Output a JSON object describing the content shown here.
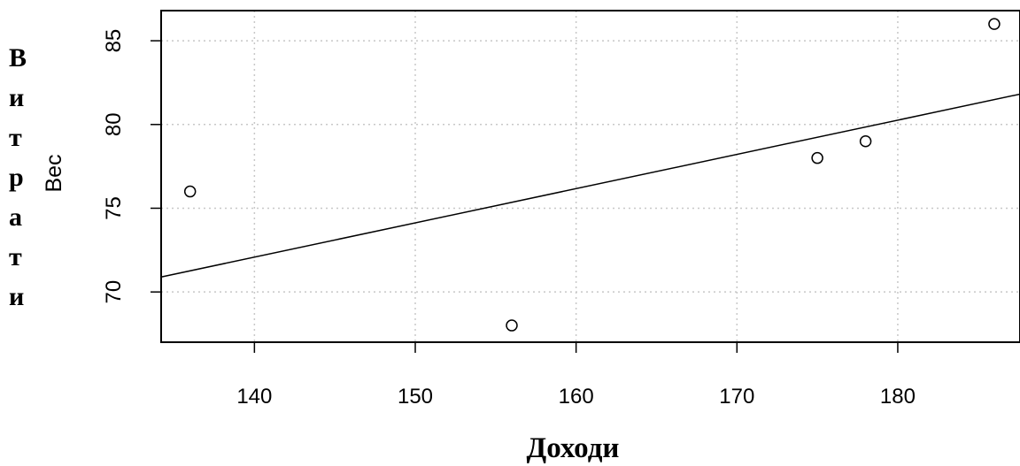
{
  "side_label_letters": [
    "В",
    "и",
    "т",
    "р",
    "а",
    "т",
    "и"
  ],
  "bottom_label": "Доходи",
  "chart_data": {
    "type": "scatter",
    "ylabel": "Вес",
    "xlabel": "",
    "xlim": [
      134.2,
      187.6
    ],
    "ylim": [
      67.0,
      86.8
    ],
    "x_ticks": [
      140,
      150,
      160,
      170,
      180
    ],
    "y_ticks": [
      70,
      75,
      80,
      85
    ],
    "grid": true,
    "points": [
      {
        "x": 136,
        "y": 76
      },
      {
        "x": 156,
        "y": 68
      },
      {
        "x": 175,
        "y": 78
      },
      {
        "x": 178,
        "y": 79
      },
      {
        "x": 186,
        "y": 86
      }
    ],
    "trendline": {
      "slope": 0.2045,
      "intercept": 43.45
    }
  }
}
